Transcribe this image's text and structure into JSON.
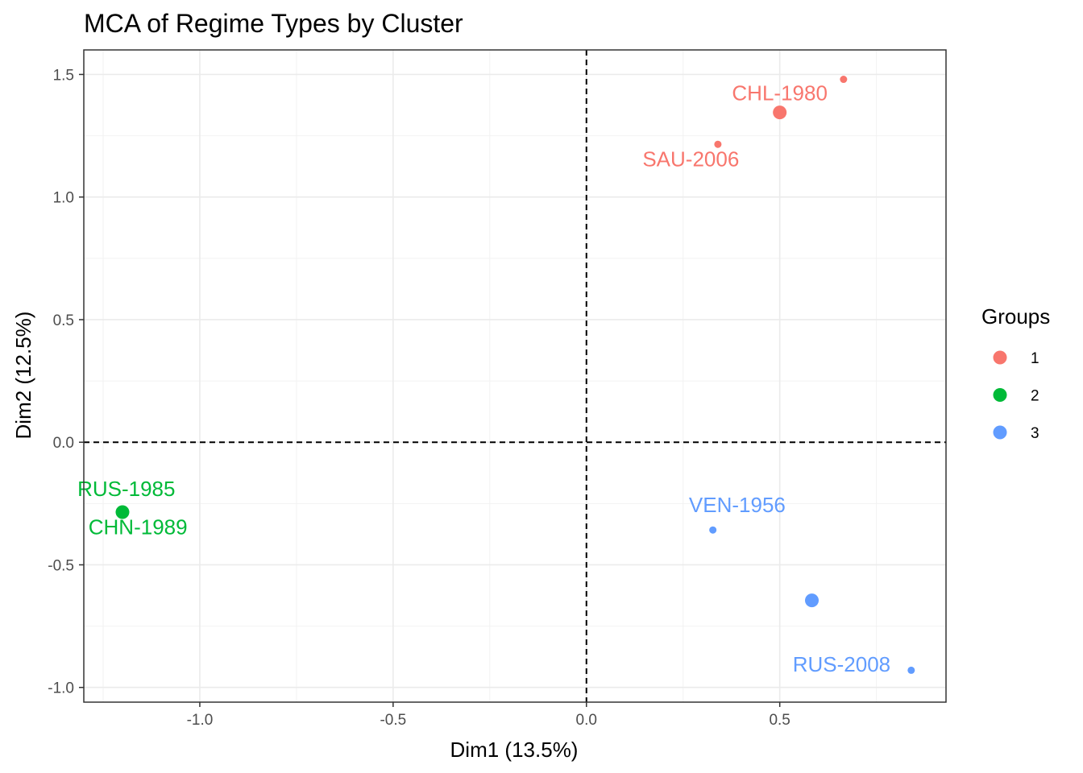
{
  "chart_data": {
    "type": "scatter",
    "title": "MCA of Regime Types by Cluster",
    "xlabel": "Dim1 (13.5%)",
    "ylabel": "Dim2 (12.5%)",
    "xlim": [
      -1.3,
      0.93
    ],
    "ylim": [
      -1.06,
      1.6
    ],
    "x_ticks": [
      -1.0,
      -0.5,
      0.0,
      0.5
    ],
    "x_tick_labels": [
      "-1.0",
      "-0.5",
      "0.0",
      "0.5"
    ],
    "y_ticks": [
      -1.0,
      -0.5,
      0.0,
      0.5,
      1.0,
      1.5
    ],
    "y_tick_labels": [
      "-1.0",
      "-0.5",
      "0.0",
      "0.5",
      "1.0",
      "1.5"
    ],
    "grid": true,
    "reference_lines": {
      "x": 0,
      "y": 0,
      "style": "dashed"
    },
    "legend": {
      "title": "Groups",
      "position": "right"
    },
    "series": [
      {
        "name": "1",
        "color": "#F8766D",
        "points": [
          {
            "x": 0.665,
            "y": 1.48,
            "label": ""
          },
          {
            "x": 0.34,
            "y": 1.215,
            "label": "SAU-2006"
          },
          {
            "x": 0.5,
            "y": 1.345,
            "label": "",
            "center": true
          }
        ],
        "labels": [
          {
            "text": "CHL-1980",
            "x": 0.5,
            "y": 1.395
          },
          {
            "text": "SAU-2006",
            "x": 0.27,
            "y": 1.125
          }
        ]
      },
      {
        "name": "2",
        "color": "#00BA38",
        "points": [
          {
            "x": -1.2,
            "y": -0.285,
            "label": "",
            "center": true
          }
        ],
        "labels": [
          {
            "text": "RUS-1985",
            "x": -1.19,
            "y": -0.22
          },
          {
            "text": "CHN-1989",
            "x": -1.16,
            "y": -0.375
          }
        ]
      },
      {
        "name": "3",
        "color": "#619CFF",
        "points": [
          {
            "x": 0.327,
            "y": -0.358,
            "label": ""
          },
          {
            "x": 0.84,
            "y": -0.93,
            "label": ""
          },
          {
            "x": 0.583,
            "y": -0.645,
            "label": "",
            "center": true
          }
        ],
        "labels": [
          {
            "text": "VEN-1956",
            "x": 0.39,
            "y": -0.285
          },
          {
            "text": "RUS-2008",
            "x": 0.66,
            "y": -0.935
          }
        ]
      }
    ]
  }
}
